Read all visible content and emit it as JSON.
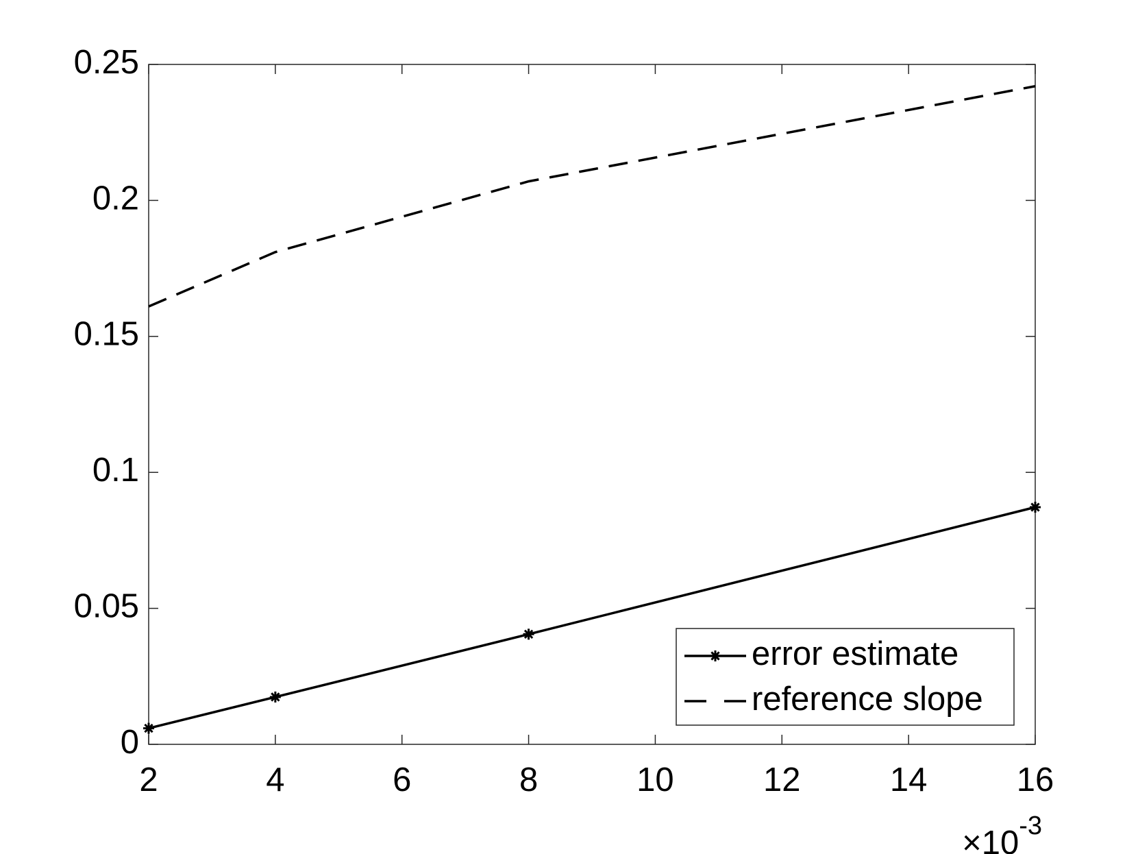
{
  "chart_data": {
    "type": "line",
    "x": [
      2,
      4,
      8,
      16
    ],
    "x_multiplier": {
      "base": "×10",
      "exponent": "-3"
    },
    "series": [
      {
        "name": "error estimate",
        "color": "#000000",
        "line_style": "solid",
        "marker": "asterisk",
        "values": [
          0.0059,
          0.0174,
          0.0405,
          0.0872
        ]
      },
      {
        "name": "reference slope",
        "color": "#000000",
        "line_style": "dashed",
        "marker": "none",
        "values": [
          0.161,
          0.181,
          0.207,
          0.242
        ]
      }
    ],
    "xlim": [
      2,
      16
    ],
    "xticks": [
      2,
      4,
      6,
      8,
      10,
      12,
      14,
      16
    ],
    "ylim": [
      0,
      0.25
    ],
    "yticks": [
      0,
      0.05,
      0.1,
      0.15,
      0.2,
      0.25
    ],
    "grid": false,
    "legend": "southeast"
  }
}
